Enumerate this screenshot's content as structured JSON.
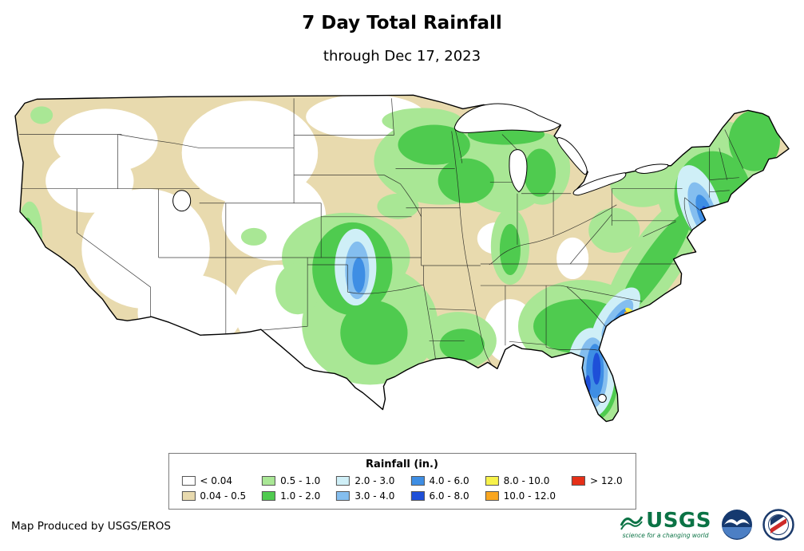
{
  "title": "7 Day Total Rainfall",
  "subtitle": "through Dec 17, 2023",
  "map": {
    "name": "Contiguous United States 7-day rainfall map"
  },
  "legend": {
    "title": "Rainfall (in.)",
    "items": [
      {
        "label": "< 0.04",
        "color": "#FFFFFF"
      },
      {
        "label": "0.04 - 0.5",
        "color": "#E8DAAE"
      },
      {
        "label": "0.5 - 1.0",
        "color": "#A9E795"
      },
      {
        "label": "1.0 - 2.0",
        "color": "#4FCB4F"
      },
      {
        "label": "2.0 - 3.0",
        "color": "#CFEFF7"
      },
      {
        "label": "3.0 - 4.0",
        "color": "#84BEEF"
      },
      {
        "label": "4.0 - 6.0",
        "color": "#3E8EE4"
      },
      {
        "label": "6.0 - 8.0",
        "color": "#1E4FD8"
      },
      {
        "label": "8.0 - 10.0",
        "color": "#F7F24A"
      },
      {
        "label": "10.0 - 12.0",
        "color": "#F9A61F"
      },
      {
        "label": "> 12.0",
        "color": "#E62F17"
      }
    ]
  },
  "palette": {
    "white": "#FFFFFF",
    "tan": "#E8DAAE",
    "green_light": "#A9E795",
    "green": "#4FCB4F",
    "cyan_pale": "#CFEFF7",
    "blue_light": "#84BEEF",
    "blue": "#3E8EE4",
    "blue_dark": "#1E4FD8",
    "yellow": "#F7F24A",
    "orange": "#F9A61F",
    "red": "#E62F17"
  },
  "footer": {
    "attribution": "Map Produced by USGS/EROS"
  },
  "logos": {
    "usgs": "USGS",
    "usgs_tagline": "science for a changing world"
  }
}
